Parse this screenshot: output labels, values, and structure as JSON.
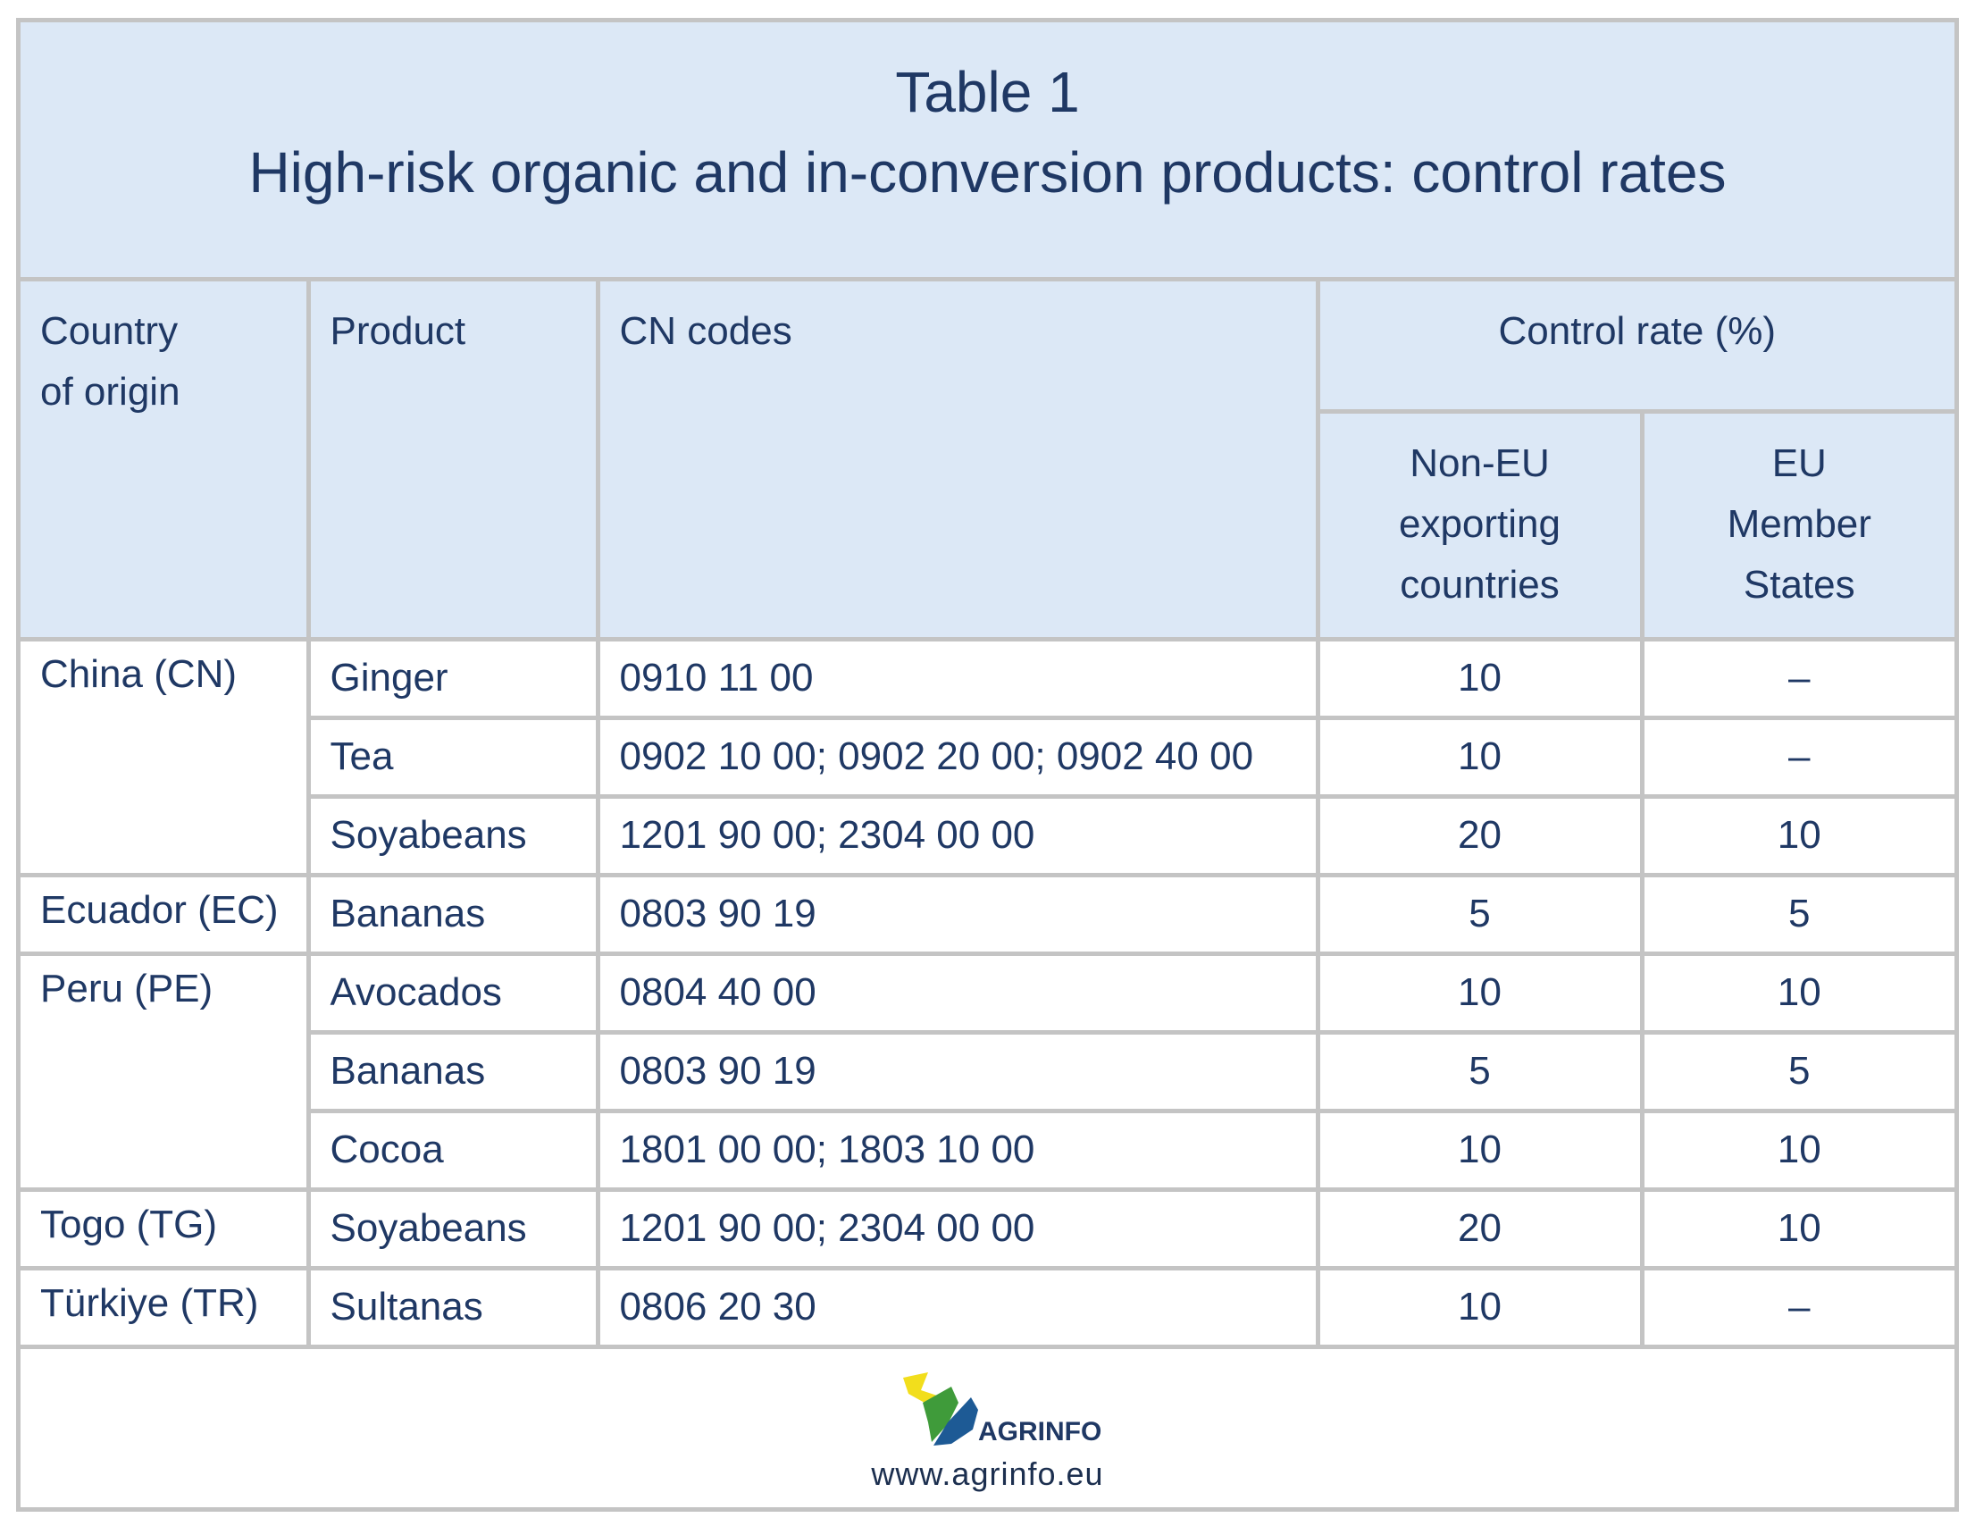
{
  "title": {
    "line1": "Table 1",
    "line2": "High-risk organic and in-conversion products: control rates"
  },
  "headers": {
    "country_line1": "Country",
    "country_line2": "of origin",
    "product": "Product",
    "cn_codes": "CN codes",
    "control_rate": "Control rate (%)",
    "non_eu_line1": "Non-EU",
    "non_eu_line2": "exporting",
    "non_eu_line3": "countries",
    "eu_line1": "EU",
    "eu_line2": "Member",
    "eu_line3": "States"
  },
  "rows": [
    {
      "country": "China (CN)",
      "product": "Ginger",
      "cn": "0910 11 00",
      "non_eu": "10",
      "eu": "–"
    },
    {
      "country": "",
      "product": "Tea",
      "cn": "0902 10 00; 0902 20 00; 0902 40 00",
      "non_eu": "10",
      "eu": "–"
    },
    {
      "country": "",
      "product": "Soyabeans",
      "cn": "1201 90 00; 2304 00 00",
      "non_eu": "20",
      "eu": "10"
    },
    {
      "country": "Ecuador (EC)",
      "product": "Bananas",
      "cn": "0803 90 19",
      "non_eu": "5",
      "eu": "5"
    },
    {
      "country": "Peru (PE)",
      "product": "Avocados",
      "cn": "0804 40 00",
      "non_eu": "10",
      "eu": "10"
    },
    {
      "country": "",
      "product": "Bananas",
      "cn": "0803 90 19",
      "non_eu": "5",
      "eu": "5"
    },
    {
      "country": "",
      "product": "Cocoa",
      "cn": "1801 00 00; 1803 10 00",
      "non_eu": "10",
      "eu": "10"
    },
    {
      "country": "Togo (TG)",
      "product": "Soyabeans",
      "cn": "1201 90 00; 2304 00 00",
      "non_eu": "20",
      "eu": "10"
    },
    {
      "country": "Türkiye (TR)",
      "product": "Sultanas",
      "cn": "0806 20 30",
      "non_eu": "10",
      "eu": "–"
    }
  ],
  "footer": {
    "logo_text": "AGRINFO",
    "url": "www.agrinfo.eu"
  },
  "colors": {
    "header_bg": "#dce8f6",
    "text": "#1f3864",
    "grid": "#c4c4c4",
    "logo_yellow": "#f2de1c",
    "logo_green": "#3f9b3a",
    "logo_blue": "#1d5a95"
  }
}
